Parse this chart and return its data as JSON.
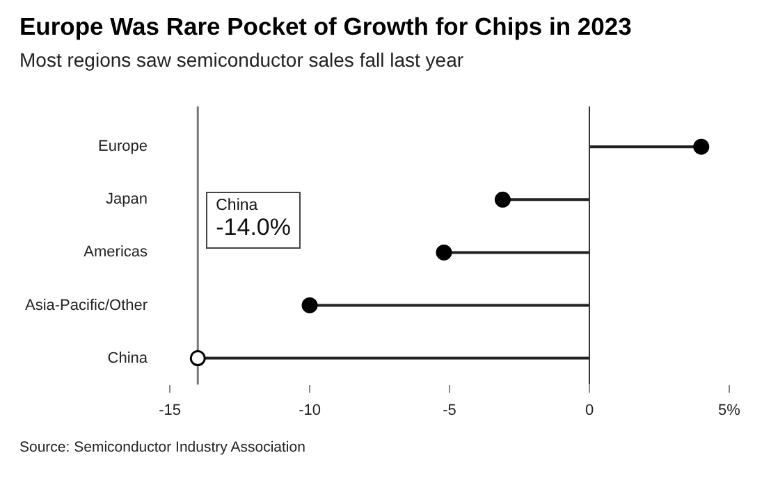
{
  "chart_data": {
    "type": "lollipop",
    "orientation": "horizontal",
    "title": "Europe Was Rare Pocket of Growth for Chips in 2023",
    "subtitle": "Most regions saw semiconductor sales fall last year",
    "categories": [
      "Europe",
      "Japan",
      "Americas",
      "Asia-Pacific/Other",
      "China"
    ],
    "values": [
      4.0,
      -3.1,
      -5.2,
      -10.0,
      -14.0
    ],
    "colors": [
      "#000000",
      "#000000",
      "#000000",
      "#000000",
      "#ffffff"
    ],
    "marker": "circle",
    "xlim": [
      -15,
      5
    ],
    "xticks": [
      -15,
      -10,
      -5,
      0,
      {
        "value": 5,
        "label": "5%"
      }
    ],
    "ref_lines": [
      {
        "axis": "x",
        "value": -14,
        "color": "#777777"
      }
    ],
    "annotations": [
      "China",
      "-14.0%",
      "Source: Semiconductor Industry Association"
    ]
  }
}
